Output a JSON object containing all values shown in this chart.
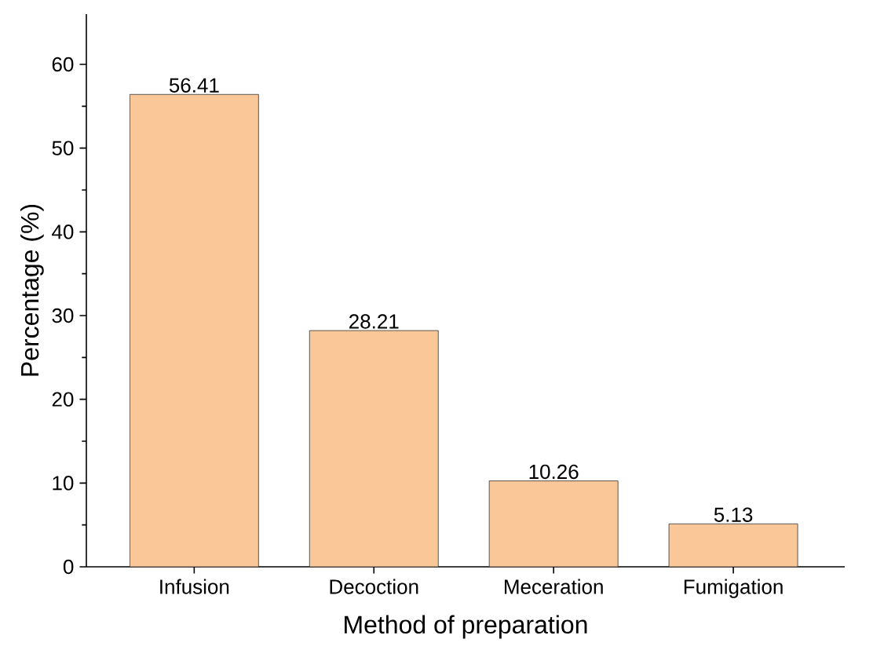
{
  "chart_data": {
    "type": "bar",
    "xlabel": "Method of preparation",
    "ylabel": "Percentage (%)",
    "categories": [
      "Infusion",
      "Decoction",
      "Meceration",
      "Fumigation"
    ],
    "values": [
      56.41,
      28.21,
      10.26,
      5.13
    ],
    "color": "#fac898",
    "ylim": [
      0,
      66
    ],
    "yticks": [
      0,
      10,
      20,
      30,
      40,
      50,
      60
    ],
    "data_labels": true
  }
}
